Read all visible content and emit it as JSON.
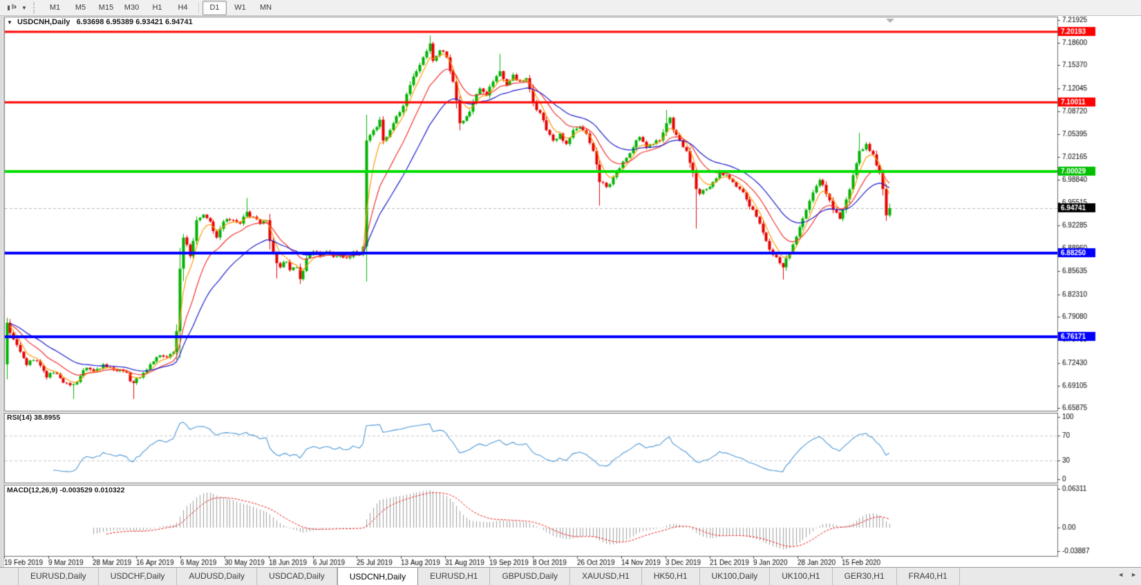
{
  "toolbar": {
    "timeframes": [
      {
        "label": "M1",
        "active": false
      },
      {
        "label": "M5",
        "active": false
      },
      {
        "label": "M15",
        "active": false
      },
      {
        "label": "M30",
        "active": false
      },
      {
        "label": "H1",
        "active": false
      },
      {
        "label": "H4",
        "active": false
      },
      {
        "label": "D1",
        "active": true
      },
      {
        "label": "W1",
        "active": false
      },
      {
        "label": "MN",
        "active": false
      }
    ]
  },
  "chart": {
    "title": {
      "symbol": "USDCNH,Daily",
      "values": "6.93698 6.95389 6.93421 6.94741"
    }
  },
  "indicators": {
    "rsi": {
      "label": "RSI(14)",
      "value": "38.8955"
    },
    "macd": {
      "label": "MACD(12,26,9)",
      "values": "-0.003529 0.010322"
    }
  },
  "chart_data": {
    "type": "candlestick",
    "symbol": "USDCNH",
    "timeframe": "Daily",
    "ylim": [
      6.655,
      7.2238
    ],
    "price_ticks": [
      7.21925,
      7.186,
      7.1537,
      7.12045,
      7.0872,
      7.05395,
      7.02165,
      6.9884,
      6.95515,
      6.92285,
      6.8896,
      6.85635,
      6.8231,
      6.7908,
      6.75755,
      6.7243,
      6.69105,
      6.65875
    ],
    "time_labels": [
      "19 Feb 2019",
      "9 Mar 2019",
      "28 Mar 2019",
      "16 Apr 2019",
      "6 May 2019",
      "30 May 2019",
      "18 Jun 2019",
      "6 Jul 2019",
      "25 Jul 2019",
      "13 Aug 2019",
      "31 Aug 2019",
      "19 Sep 2019",
      "8 Oct 2019",
      "26 Oct 2019",
      "14 Nov 2019",
      "3 Dec 2019",
      "21 Dec 2019",
      "9 Jan 2020",
      "28 Jan 2020",
      "15 Feb 2020"
    ],
    "hlines": [
      {
        "value": 7.20193,
        "label": "7.20193",
        "color": "#ff0000",
        "width": 3
      },
      {
        "value": 7.10011,
        "label": "7.10011",
        "color": "#ff0000",
        "width": 3
      },
      {
        "value": 7.00029,
        "label": "7.00029",
        "color": "#00dd00",
        "width": 4
      },
      {
        "value": 6.8825,
        "label": "6.88250",
        "color": "#0000ff",
        "width": 4
      },
      {
        "value": 6.76171,
        "label": "6.76171",
        "color": "#0000ff",
        "width": 4
      }
    ],
    "current_price": {
      "value": 6.94741,
      "label": "6.94741"
    },
    "up_color": "#00b200",
    "down_color": "#e60000",
    "candle_count": 266,
    "close_anchors": [
      [
        0,
        6.782
      ],
      [
        2,
        6.758
      ],
      [
        4,
        6.74
      ],
      [
        6,
        6.721
      ],
      [
        8,
        6.728
      ],
      [
        10,
        6.72
      ],
      [
        12,
        6.703
      ],
      [
        14,
        6.71
      ],
      [
        16,
        6.702
      ],
      [
        18,
        6.695
      ],
      [
        20,
        6.693
      ],
      [
        22,
        6.705
      ],
      [
        24,
        6.717
      ],
      [
        26,
        6.712
      ],
      [
        29,
        6.722
      ],
      [
        32,
        6.714
      ],
      [
        35,
        6.712
      ],
      [
        38,
        6.695
      ],
      [
        40,
        6.703
      ],
      [
        43,
        6.722
      ],
      [
        46,
        6.735
      ],
      [
        48,
        6.732
      ],
      [
        50,
        6.74
      ],
      [
        51,
        6.77
      ],
      [
        52,
        6.86
      ],
      [
        53,
        6.905
      ],
      [
        55,
        6.878
      ],
      [
        56,
        6.9
      ],
      [
        57,
        6.93
      ],
      [
        59,
        6.938
      ],
      [
        61,
        6.928
      ],
      [
        63,
        6.905
      ],
      [
        65,
        6.928
      ],
      [
        68,
        6.93
      ],
      [
        70,
        6.925
      ],
      [
        72,
        6.942
      ],
      [
        74,
        6.935
      ],
      [
        76,
        6.925
      ],
      [
        78,
        6.93
      ],
      [
        79,
        6.9
      ],
      [
        81,
        6.868
      ],
      [
        82,
        6.862
      ],
      [
        84,
        6.87
      ],
      [
        85,
        6.858
      ],
      [
        87,
        6.862
      ],
      [
        88,
        6.845
      ],
      [
        90,
        6.875
      ],
      [
        92,
        6.885
      ],
      [
        94,
        6.878
      ],
      [
        96,
        6.885
      ],
      [
        98,
        6.877
      ],
      [
        100,
        6.882
      ],
      [
        102,
        6.875
      ],
      [
        104,
        6.885
      ],
      [
        106,
        6.88
      ],
      [
        107,
        6.892
      ],
      [
        108,
        7.045
      ],
      [
        110,
        7.06
      ],
      [
        112,
        7.075
      ],
      [
        113,
        7.045
      ],
      [
        115,
        7.06
      ],
      [
        117,
        7.08
      ],
      [
        119,
        7.095
      ],
      [
        121,
        7.125
      ],
      [
        123,
        7.145
      ],
      [
        125,
        7.165
      ],
      [
        127,
        7.185
      ],
      [
        128,
        7.16
      ],
      [
        130,
        7.175
      ],
      [
        132,
        7.165
      ],
      [
        134,
        7.13
      ],
      [
        136,
        7.07
      ],
      [
        138,
        7.08
      ],
      [
        140,
        7.1
      ],
      [
        142,
        7.12
      ],
      [
        144,
        7.11
      ],
      [
        146,
        7.13
      ],
      [
        148,
        7.145
      ],
      [
        150,
        7.125
      ],
      [
        152,
        7.14
      ],
      [
        154,
        7.13
      ],
      [
        156,
        7.135
      ],
      [
        158,
        7.1
      ],
      [
        160,
        7.085
      ],
      [
        162,
        7.06
      ],
      [
        164,
        7.045
      ],
      [
        166,
        7.055
      ],
      [
        168,
        7.04
      ],
      [
        170,
        7.06
      ],
      [
        172,
        7.065
      ],
      [
        174,
        7.055
      ],
      [
        176,
        7.03
      ],
      [
        178,
        6.985
      ],
      [
        180,
        6.978
      ],
      [
        182,
        6.992
      ],
      [
        184,
        7.005
      ],
      [
        186,
        7.02
      ],
      [
        188,
        7.035
      ],
      [
        190,
        7.05
      ],
      [
        192,
        7.035
      ],
      [
        194,
        7.04
      ],
      [
        196,
        7.045
      ],
      [
        198,
        7.07
      ],
      [
        199,
        7.078
      ],
      [
        200,
        7.06
      ],
      [
        202,
        7.045
      ],
      [
        204,
        7.03
      ],
      [
        206,
        6.998
      ],
      [
        207,
        6.975
      ],
      [
        208,
        6.968
      ],
      [
        210,
        6.975
      ],
      [
        212,
        6.985
      ],
      [
        214,
        7.0
      ],
      [
        216,
        6.995
      ],
      [
        218,
        6.985
      ],
      [
        220,
        6.975
      ],
      [
        222,
        6.96
      ],
      [
        224,
        6.945
      ],
      [
        226,
        6.925
      ],
      [
        228,
        6.9
      ],
      [
        230,
        6.88
      ],
      [
        232,
        6.868
      ],
      [
        233,
        6.862
      ],
      [
        234,
        6.875
      ],
      [
        236,
        6.895
      ],
      [
        238,
        6.92
      ],
      [
        240,
        6.945
      ],
      [
        242,
        6.97
      ],
      [
        244,
        6.988
      ],
      [
        246,
        6.968
      ],
      [
        248,
        6.945
      ],
      [
        250,
        6.932
      ],
      [
        252,
        6.96
      ],
      [
        254,
        6.995
      ],
      [
        256,
        7.03
      ],
      [
        258,
        7.04
      ],
      [
        260,
        7.025
      ],
      [
        262,
        6.998
      ],
      [
        263,
        6.975
      ],
      [
        264,
        6.937
      ],
      [
        265,
        6.94741
      ]
    ],
    "wick_overrides": [
      {
        "i": 20,
        "l": 6.672
      },
      {
        "i": 38,
        "l": 6.672
      },
      {
        "i": 72,
        "h": 6.962
      },
      {
        "i": 81,
        "l": 6.846
      },
      {
        "i": 88,
        "l": 6.838
      },
      {
        "i": 127,
        "h": 7.1965
      },
      {
        "i": 148,
        "h": 7.17
      },
      {
        "i": 178,
        "l": 6.951
      },
      {
        "i": 198,
        "h": 7.089
      },
      {
        "i": 207,
        "l": 6.918
      },
      {
        "i": 233,
        "l": 6.8443
      },
      {
        "i": 256,
        "h": 7.056
      }
    ],
    "last_candle": {
      "o": 6.93698,
      "h": 6.95389,
      "l": 6.93421,
      "c": 6.94741
    },
    "moving_averages": [
      {
        "period": 5,
        "color": "#ff9900"
      },
      {
        "period": 13,
        "color": "#f23030"
      },
      {
        "period": 26,
        "color": "#1a1acd"
      }
    ],
    "rsi": {
      "period": 14,
      "last": 38.8955,
      "levels": [
        100,
        70,
        30,
        0
      ],
      "dashed_levels": [
        70,
        30
      ],
      "color": "#4a95d6"
    },
    "macd": {
      "fast": 12,
      "slow": 26,
      "signal": 9,
      "last_main": -0.003529,
      "last_signal": 0.010322,
      "axis_ticks": [
        {
          "value": 0.06311,
          "label": "0.06311"
        },
        {
          "value": 0,
          "label": "0.00"
        },
        {
          "value": -0.03887,
          "label": "-0.03887"
        }
      ],
      "hist_color": "#9e9e9e",
      "signal_color": "#ee1111"
    }
  },
  "tabs": {
    "items": [
      {
        "label": "EURUSD,Daily",
        "active": false
      },
      {
        "label": "USDCHF,Daily",
        "active": false
      },
      {
        "label": "AUDUSD,Daily",
        "active": false
      },
      {
        "label": "USDCAD,Daily",
        "active": false
      },
      {
        "label": "USDCNH,Daily",
        "active": true
      },
      {
        "label": "EURUSD,H1",
        "active": false
      },
      {
        "label": "GBPUSD,Daily",
        "active": false
      },
      {
        "label": "XAUUSD,H1",
        "active": false
      },
      {
        "label": "HK50,H1",
        "active": false
      },
      {
        "label": "UK100,Daily",
        "active": false
      },
      {
        "label": "UK100,H1",
        "active": false
      },
      {
        "label": "GER30,H1",
        "active": false
      },
      {
        "label": "FRA40,H1",
        "active": false
      }
    ],
    "nav_left": "◄",
    "nav_right": "►"
  }
}
